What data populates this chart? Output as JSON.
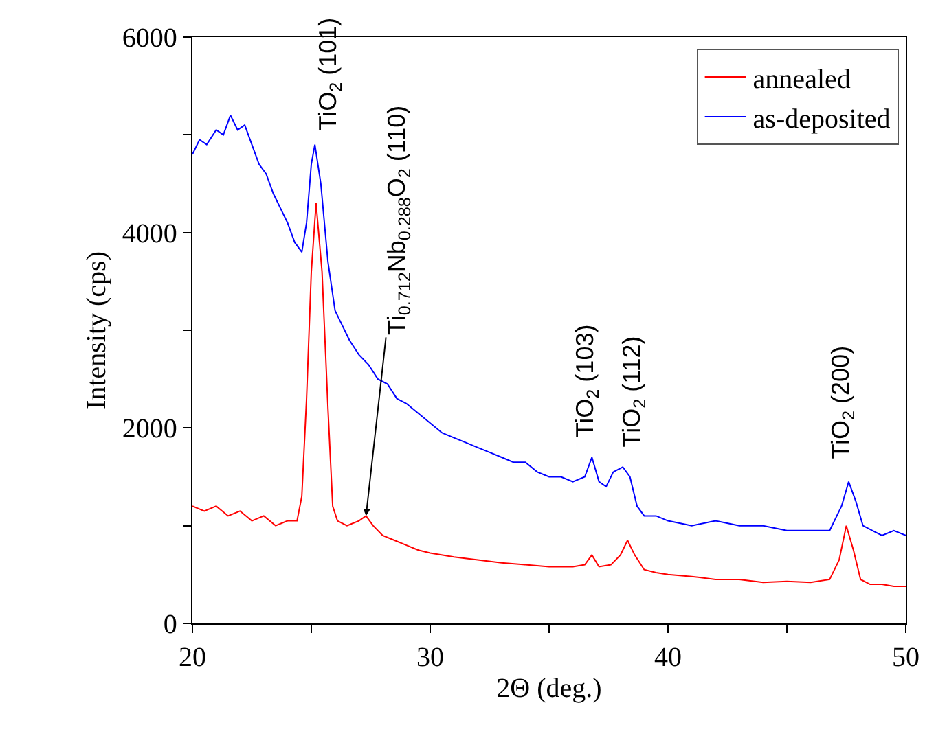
{
  "chart_data": {
    "type": "line",
    "xlabel": "2Θ (deg.)",
    "ylabel": "Intensity (cps)",
    "xlim": [
      20,
      50
    ],
    "ylim": [
      0,
      6000
    ],
    "xticks": [
      20,
      {
        "value": 25,
        "label": null
      },
      30,
      {
        "value": 35,
        "label": null
      },
      40,
      {
        "value": 45,
        "label": null
      },
      50
    ],
    "yticks": [
      0,
      {
        "value": 1000,
        "label": null
      },
      2000,
      {
        "value": 3000,
        "label": null
      },
      4000,
      {
        "value": 5000,
        "label": null
      },
      6000
    ],
    "legend": "top right",
    "marker": "none",
    "line_style": "solid",
    "series": [
      {
        "name": "annealed",
        "color": "#ff0000",
        "x": [
          20,
          20.5,
          21,
          21.5,
          22,
          22.5,
          23,
          23.5,
          24,
          24.4,
          24.6,
          24.8,
          25,
          25.2,
          25.45,
          25.7,
          25.9,
          26.1,
          26.5,
          27,
          27.3,
          27.6,
          28,
          28.5,
          29,
          29.5,
          30,
          31,
          32,
          33,
          34,
          35,
          36,
          36.5,
          36.8,
          37.1,
          37.6,
          38,
          38.3,
          38.6,
          39,
          39.5,
          40,
          41,
          42,
          43,
          44,
          45,
          46,
          46.8,
          47.2,
          47.5,
          47.8,
          48.1,
          48.5,
          49,
          49.5,
          50
        ],
        "values": [
          1200,
          1150,
          1200,
          1100,
          1150,
          1050,
          1100,
          1000,
          1050,
          1050,
          1300,
          2300,
          3600,
          4300,
          3600,
          2200,
          1200,
          1050,
          1000,
          1050,
          1100,
          1000,
          900,
          850,
          800,
          750,
          720,
          680,
          650,
          620,
          600,
          580,
          580,
          600,
          700,
          580,
          600,
          700,
          850,
          700,
          550,
          520,
          500,
          480,
          450,
          450,
          420,
          430,
          420,
          450,
          650,
          1000,
          750,
          450,
          400,
          400,
          380,
          380
        ]
      },
      {
        "name": "as-deposited",
        "color": "#0000ff",
        "x": [
          20,
          20.3,
          20.6,
          21,
          21.3,
          21.6,
          21.9,
          22.2,
          22.5,
          22.8,
          23.1,
          23.4,
          23.7,
          24,
          24.3,
          24.6,
          24.8,
          25,
          25.15,
          25.4,
          25.7,
          26,
          26.3,
          26.6,
          27,
          27.4,
          27.8,
          28.2,
          28.6,
          29,
          29.5,
          30,
          30.5,
          31,
          31.5,
          32,
          32.5,
          33,
          33.5,
          34,
          34.5,
          35,
          35.5,
          36,
          36.5,
          36.8,
          37.1,
          37.4,
          37.7,
          38.1,
          38.4,
          38.7,
          39,
          39.5,
          40,
          41,
          42,
          43,
          44,
          45,
          46,
          46.8,
          47.3,
          47.6,
          47.9,
          48.2,
          48.6,
          49,
          49.5,
          50
        ],
        "values": [
          4800,
          4950,
          4900,
          5050,
          5000,
          5200,
          5050,
          5100,
          4900,
          4700,
          4600,
          4400,
          4250,
          4100,
          3900,
          3800,
          4100,
          4700,
          4900,
          4500,
          3700,
          3200,
          3050,
          2900,
          2750,
          2650,
          2500,
          2450,
          2300,
          2250,
          2150,
          2050,
          1950,
          1900,
          1850,
          1800,
          1750,
          1700,
          1650,
          1650,
          1550,
          1500,
          1500,
          1450,
          1500,
          1700,
          1450,
          1400,
          1550,
          1600,
          1500,
          1200,
          1100,
          1100,
          1050,
          1000,
          1050,
          1000,
          1000,
          950,
          950,
          950,
          1200,
          1450,
          1250,
          1000,
          950,
          900,
          950,
          900
        ]
      }
    ],
    "annotations": [
      {
        "text": "TiO$_{2}$ (101)",
        "x": 25.2,
        "y": 4900
      },
      {
        "text": "Ti$_{0.712}$Nb$_{0.288}$O$_{2}$ (110)",
        "x": 27.3,
        "y": 1100
      },
      {
        "text": "TiO$_{2}$ (103)",
        "x": 36.8,
        "y": 1700
      },
      {
        "text": "TiO$_{2}$ (112)",
        "x": 38.1,
        "y": 1600
      },
      {
        "text": "TiO$_{2}$ (200)",
        "x": 47.6,
        "y": 1450
      }
    ]
  }
}
